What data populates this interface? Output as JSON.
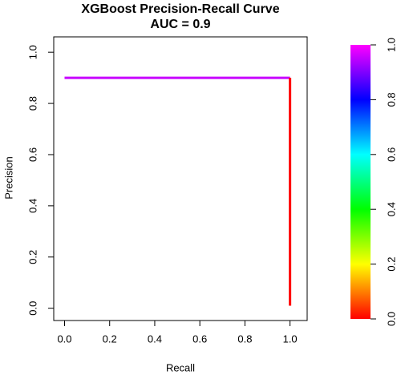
{
  "chart_data": {
    "type": "line",
    "title": "XGBoost Precision-Recall Curve",
    "subtitle": "AUC = 0.9",
    "x_label": "Recall",
    "y_label": "Precision",
    "xlim": [
      -0.048,
      1.076
    ],
    "ylim": [
      -0.048,
      1.06
    ],
    "xticks": [
      {
        "value": 0,
        "label": "0.0"
      },
      0.2,
      0.4,
      0.6,
      0.8,
      {
        "value": 1,
        "label": "1.0"
      }
    ],
    "yticks": [
      {
        "value": 0,
        "label": "0.0"
      },
      0.2,
      0.4,
      0.6,
      0.8,
      {
        "value": 1,
        "label": "1.0"
      }
    ],
    "series": [
      {
        "color": "#c800ff",
        "x": [
          0,
          1
        ],
        "y": [
          0.9,
          0.9
        ]
      },
      {
        "color": "#ff0000",
        "x": [
          1,
          1
        ],
        "y": [
          0.9,
          0.01
        ]
      }
    ],
    "colorbar": {
      "lim": [
        0,
        1
      ],
      "colors": [
        "#ff0000",
        "#ffff00",
        "#00ff00",
        "#00ffff",
        "#0000ff",
        "#ff00ff"
      ],
      "ticks": [
        {
          "value": 0,
          "label": "0.0"
        },
        0.2,
        0.4,
        0.6,
        0.8,
        {
          "value": 1,
          "label": "1.0"
        }
      ]
    }
  }
}
